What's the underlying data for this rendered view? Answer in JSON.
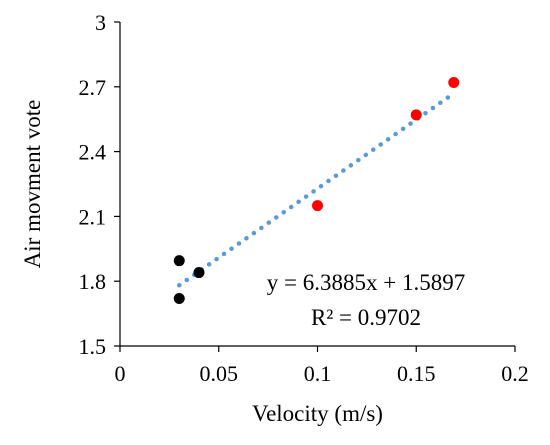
{
  "chart_data": {
    "type": "scatter",
    "xlabel": "Velocity (m/s)",
    "ylabel": "Air movment vote",
    "xlim": [
      0,
      0.2
    ],
    "ylim": [
      1.5,
      3
    ],
    "xticks": [
      0,
      0.05,
      0.1,
      0.15,
      0.2
    ],
    "xtick_labels": [
      "0",
      "0.05",
      "0.1",
      "0.15",
      "0.2"
    ],
    "yticks": [
      1.5,
      1.8,
      2.1,
      2.4,
      2.7,
      3
    ],
    "ytick_labels": [
      "1.5",
      "1.8",
      "2.1",
      "2.4",
      "2.7",
      "3"
    ],
    "grid": false,
    "series": [
      {
        "color": "#000000",
        "points": [
          {
            "x": 0.03,
            "y": 1.895
          },
          {
            "x": 0.03,
            "y": 1.72
          },
          {
            "x": 0.04,
            "y": 1.84
          }
        ]
      },
      {
        "color": "#ff0000",
        "points": [
          {
            "x": 0.1,
            "y": 2.15
          },
          {
            "x": 0.15,
            "y": 2.57
          },
          {
            "x": 0.169,
            "y": 2.72
          }
        ]
      }
    ],
    "trendline": {
      "slope": 6.3885,
      "intercept": 1.5897,
      "x_range": [
        0.03,
        0.169
      ],
      "color": "#5b9bd5",
      "style": "dotted"
    },
    "annotations": {
      "equation": "y = 6.3885x + 1.5897",
      "r_squared": "R² = 0.9702"
    }
  }
}
